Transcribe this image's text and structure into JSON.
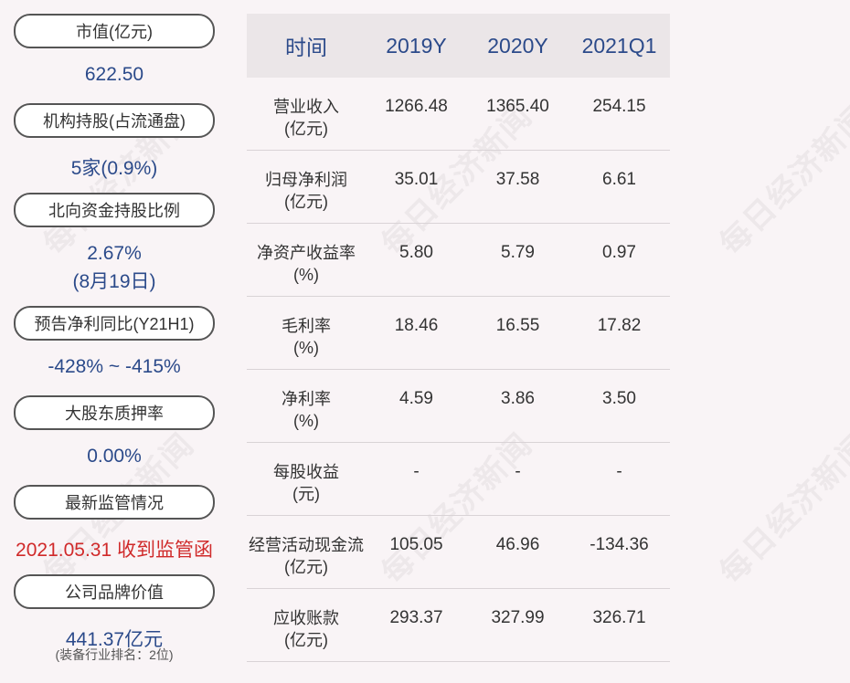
{
  "watermark": "每日经济新闻",
  "left_panel": [
    {
      "label": "市值(亿元)",
      "value": "622.50"
    },
    {
      "label": "机构持股(占流通盘)",
      "value": "5家(0.9%)"
    },
    {
      "label": "北向资金持股比例",
      "value": "2.67%",
      "value2": "(8月19日)"
    },
    {
      "label": "预告净利同比(Y21H1)",
      "value": "-428% ~ -415%"
    },
    {
      "label": "大股东质押率",
      "value": "0.00%"
    },
    {
      "label": "最新监管情况",
      "value": "2021.05.31 收到监管函"
    },
    {
      "label": "公司品牌价值",
      "value": "441.37亿元",
      "note": "(装备行业排名：2位)"
    }
  ],
  "table": {
    "headers": [
      "时间",
      "2019Y",
      "2020Y",
      "2021Q1"
    ],
    "rows": [
      {
        "label": "营业收入",
        "unit": "(亿元)",
        "values": [
          "1266.48",
          "1365.40",
          "254.15"
        ]
      },
      {
        "label": "归母净利润",
        "unit": "(亿元)",
        "values": [
          "35.01",
          "37.58",
          "6.61"
        ]
      },
      {
        "label": "净资产收益率",
        "unit": "(%)",
        "values": [
          "5.80",
          "5.79",
          "0.97"
        ]
      },
      {
        "label": "毛利率",
        "unit": "(%)",
        "values": [
          "18.46",
          "16.55",
          "17.82"
        ]
      },
      {
        "label": "净利率",
        "unit": "(%)",
        "values": [
          "4.59",
          "3.86",
          "3.50"
        ]
      },
      {
        "label": "每股收益",
        "unit": "(元)",
        "values": [
          "-",
          "-",
          "-"
        ]
      },
      {
        "label": "经营活动现金流",
        "unit": "(亿元)",
        "values": [
          "105.05",
          "46.96",
          "-134.36"
        ]
      },
      {
        "label": "应收账款",
        "unit": "(亿元)",
        "values": [
          "293.37",
          "327.99",
          "326.71"
        ]
      }
    ]
  }
}
